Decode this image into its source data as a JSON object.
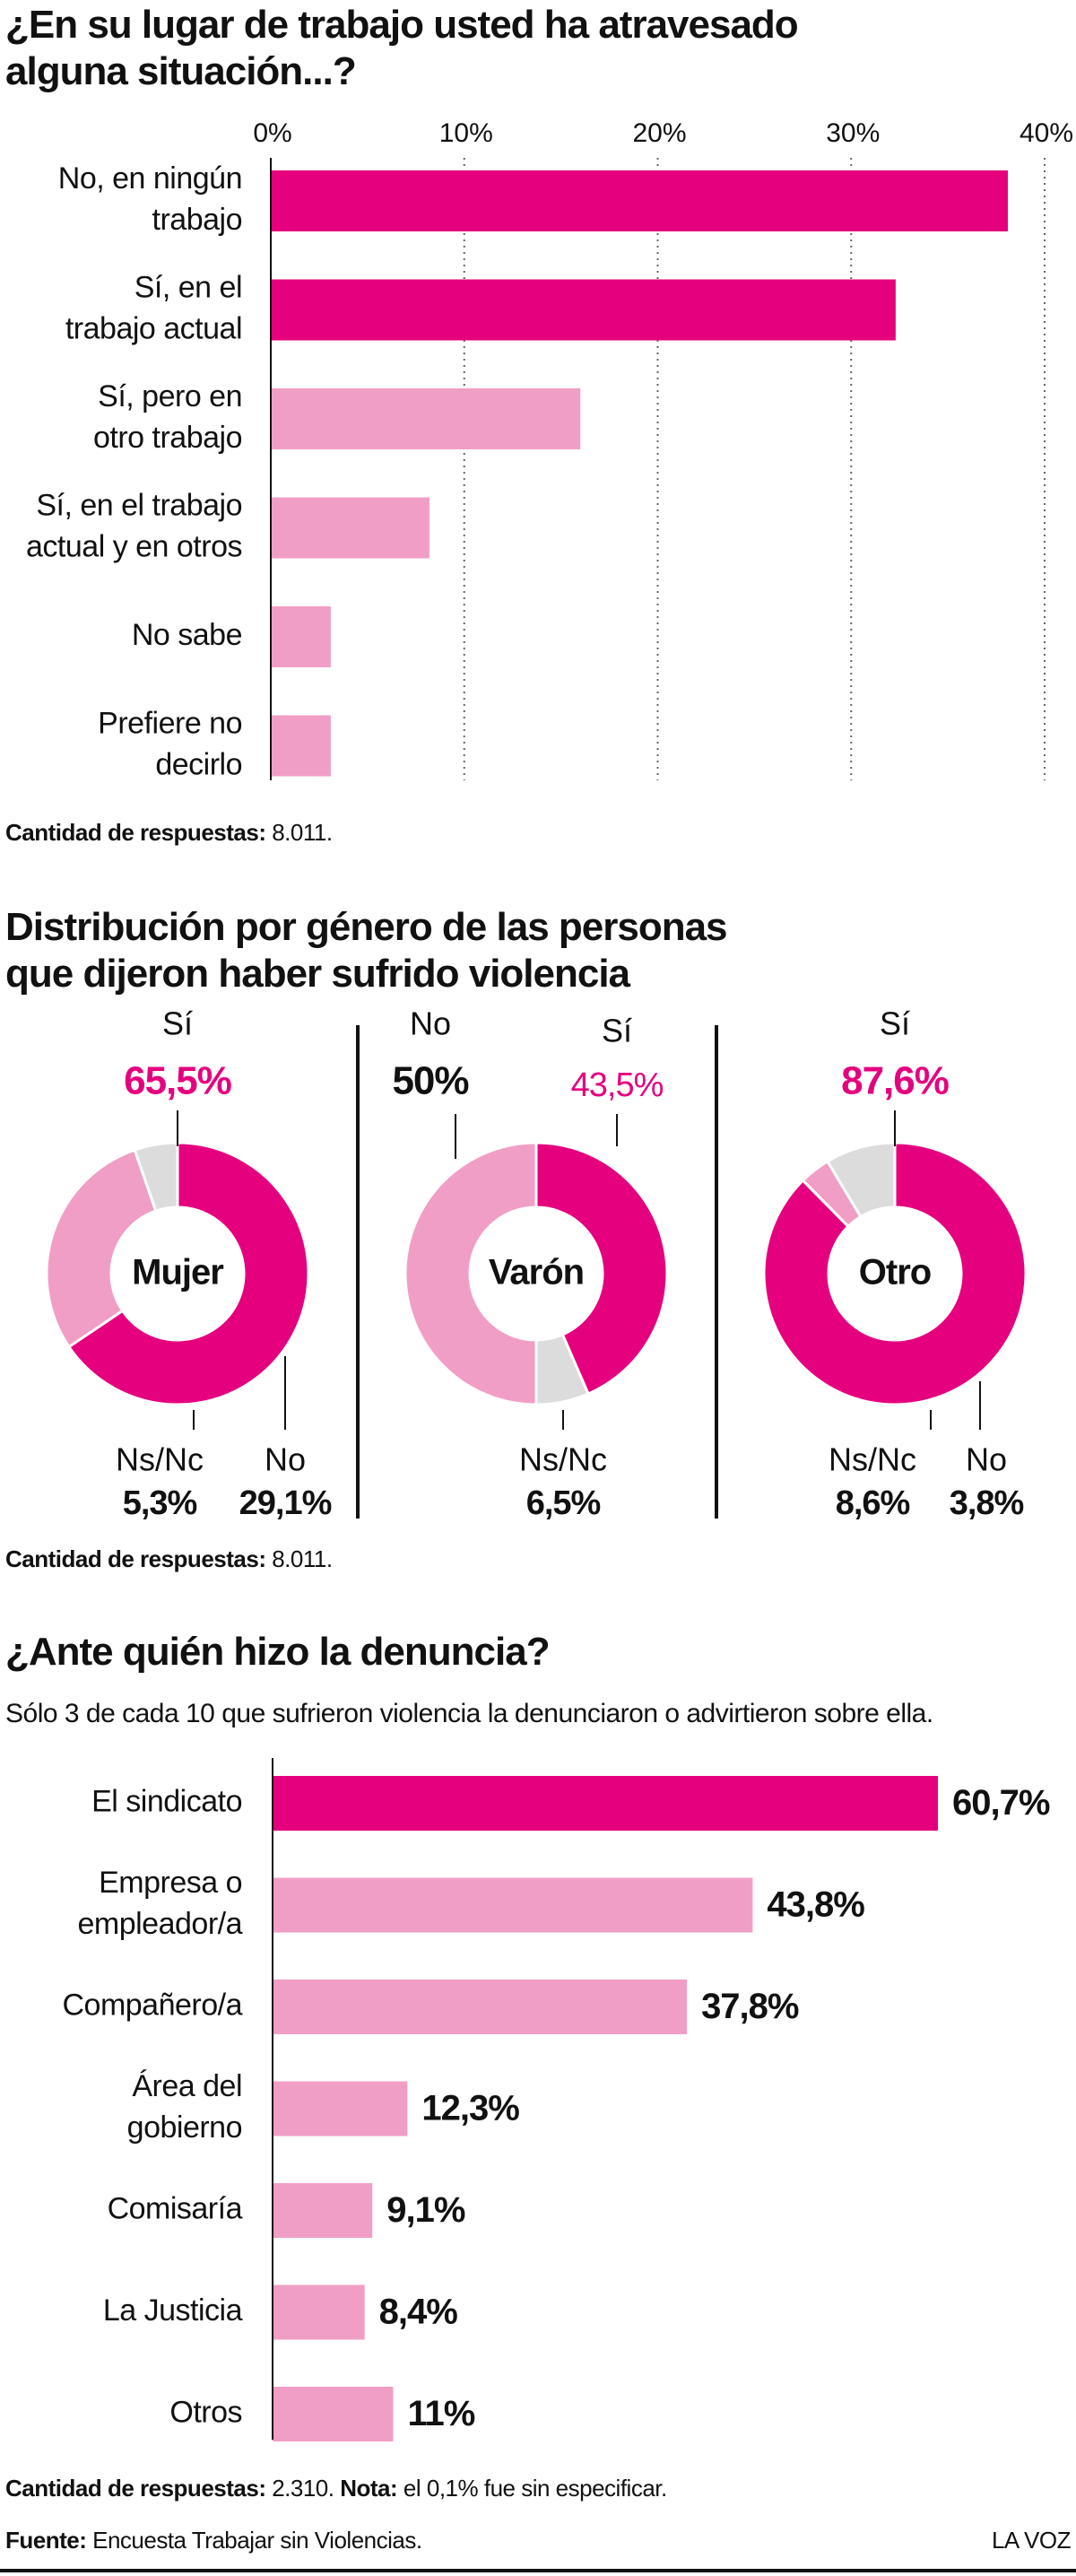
{
  "colors": {
    "strong": "#e5007e",
    "light": "#f19ec6",
    "grey": "#dcdcdc",
    "text": "#111111"
  },
  "section1": {
    "title_line1": "¿En su lugar de trabajo usted ha atravesado",
    "title_line2": "alguna situación...?",
    "respuestas_label": "Cantidad de respuestas:",
    "respuestas_value": " 8.011."
  },
  "section2": {
    "title_line1": "Distribución por género de las personas",
    "title_line2": "que dijeron haber sufrido violencia",
    "respuestas_label": "Cantidad de respuestas:",
    "respuestas_value": " 8.011."
  },
  "section3": {
    "title": "¿Ante quién hizo la denuncia?",
    "subtitle": "Sólo 3 de cada 10 que sufrieron violencia la denunciaron o advirtieron sobre ella.",
    "respuestas_label": "Cantidad de respuestas:",
    "respuestas_value": " 2.310.",
    "nota_label": "Nota:",
    "nota_value": " el 0,1% fue sin especificar."
  },
  "footer": {
    "fuente_label": "Fuente:",
    "fuente_value": " Encuesta Trabajar sin Violencias.",
    "brand": "LA VOZ"
  },
  "chart_data": [
    {
      "type": "bar",
      "orientation": "horizontal",
      "title": "¿En su lugar de trabajo usted ha atravesado alguna situación...?",
      "categories": [
        [
          "No, en ningún",
          "trabajo"
        ],
        [
          "Sí, en el",
          "trabajo actual"
        ],
        [
          "Sí, pero en",
          "otro trabajo"
        ],
        [
          "Sí, en el trabajo",
          "actual y en otros"
        ],
        [
          "No sabe"
        ],
        [
          "Prefiere no",
          "decirlo"
        ]
      ],
      "values": [
        38.1,
        32.3,
        16.0,
        8.2,
        3.1,
        3.1
      ],
      "highlight": [
        true,
        true,
        false,
        false,
        false,
        false
      ],
      "xticks": [
        "0%",
        "10%",
        "20%",
        "30%",
        "40%"
      ],
      "xlim": [
        0,
        40
      ],
      "grid": true,
      "ylabel": "",
      "xlabel": ""
    },
    {
      "type": "pie",
      "variant": "donut",
      "title": "Distribución por género de las personas que dijeron haber sufrido violencia",
      "charts": [
        {
          "center_label": "Mujer",
          "slices": [
            {
              "label": "Sí",
              "value": 65.5,
              "text": "65,5%",
              "color": "strong"
            },
            {
              "label": "No",
              "value": 29.1,
              "text": "29,1%",
              "color": "light"
            },
            {
              "label": "Ns/Nc",
              "value": 5.3,
              "text": "5,3%",
              "color": "grey"
            }
          ]
        },
        {
          "center_label": "Varón",
          "slices": [
            {
              "label": "Sí",
              "value": 43.5,
              "text": "43,5%",
              "color": "strong"
            },
            {
              "label": "Ns/Nc",
              "value": 6.5,
              "text": "6,5%",
              "color": "grey"
            },
            {
              "label": "No",
              "value": 50,
              "text": "50%",
              "color": "light"
            }
          ]
        },
        {
          "center_label": "Otro",
          "slices": [
            {
              "label": "Sí",
              "value": 87.6,
              "text": "87,6%",
              "color": "strong"
            },
            {
              "label": "No",
              "value": 3.8,
              "text": "3,8%",
              "color": "light"
            },
            {
              "label": "Ns/Nc",
              "value": 8.6,
              "text": "8,6%",
              "color": "grey"
            }
          ]
        }
      ]
    },
    {
      "type": "bar",
      "orientation": "horizontal",
      "title": "¿Ante quién hizo la denuncia?",
      "categories": [
        [
          "El sindicato"
        ],
        [
          "Empresa o",
          "empleador/a"
        ],
        [
          "Compañero/a"
        ],
        [
          "Área del",
          "gobierno"
        ],
        [
          "Comisaría"
        ],
        [
          "La Justicia"
        ],
        [
          "Otros"
        ]
      ],
      "values": [
        60.7,
        43.8,
        37.8,
        12.3,
        9.1,
        8.4,
        11
      ],
      "value_labels": [
        "60,7%",
        "43,8%",
        "37,8%",
        "12,3%",
        "9,1%",
        "8,4%",
        "11%"
      ],
      "highlight": [
        true,
        false,
        false,
        false,
        false,
        false,
        false
      ],
      "xlim": [
        0,
        60.7
      ],
      "grid": false,
      "ylabel": "",
      "xlabel": ""
    }
  ]
}
